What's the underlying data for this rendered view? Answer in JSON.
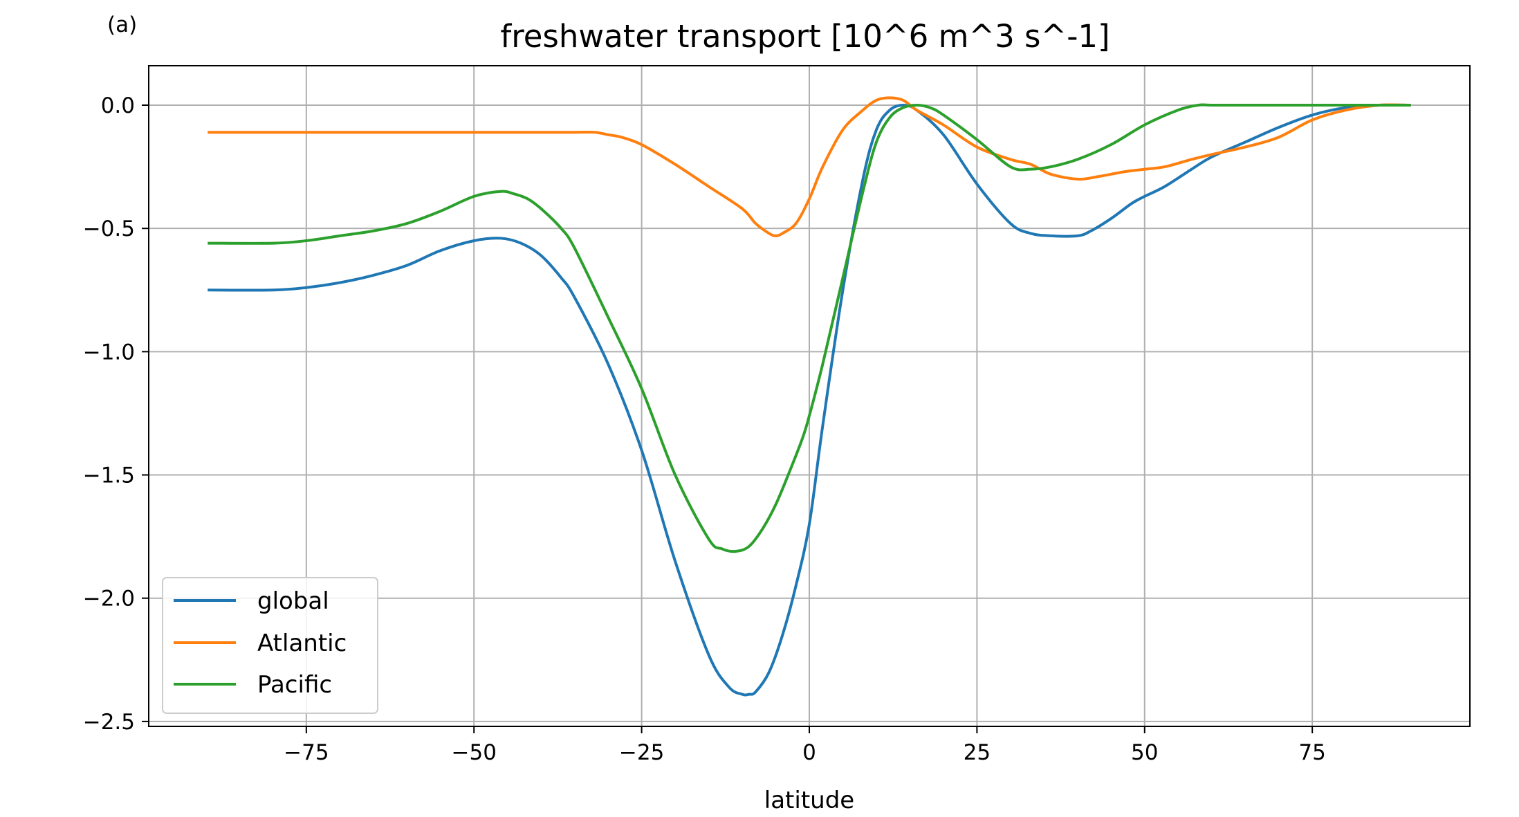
{
  "panel_label": "(a)",
  "chart_data": {
    "type": "line",
    "title": "freshwater transport [10^6 m^3 s^-1]",
    "xlabel": "latitude",
    "ylabel": "",
    "xlim": [
      -98.5,
      98.5
    ],
    "ylim": [
      -2.52,
      0.16
    ],
    "xticks": [
      -75,
      -50,
      -25,
      0,
      25,
      50,
      75
    ],
    "xtick_labels": [
      "−75",
      "−50",
      "−25",
      "0",
      "25",
      "50",
      "75"
    ],
    "yticks": [
      0.0,
      -0.5,
      -1.0,
      -1.5,
      -2.0,
      -2.5
    ],
    "ytick_labels": [
      "0.0",
      "−0.5",
      "−1.0",
      "−1.5",
      "−2.0",
      "−2.5"
    ],
    "grid": true,
    "legend_position": "lower-left",
    "series": [
      {
        "name": "global",
        "color": "#1f77b4",
        "x": [
          -89.5,
          -80,
          -75,
          -70,
          -65,
          -60,
          -55,
          -50,
          -46,
          -43,
          -40,
          -37,
          -35,
          -30,
          -25,
          -20,
          -15,
          -12,
          -10,
          -9,
          -8,
          -6,
          -4,
          -2,
          0,
          2,
          5,
          8,
          10,
          12,
          14,
          16,
          20,
          25,
          30,
          33,
          36,
          40,
          42,
          45,
          48,
          50,
          53,
          57,
          60,
          65,
          70,
          75,
          80,
          85,
          89.5
        ],
        "y": [
          -0.75,
          -0.75,
          -0.74,
          -0.72,
          -0.69,
          -0.65,
          -0.59,
          -0.55,
          -0.54,
          -0.56,
          -0.61,
          -0.7,
          -0.78,
          -1.05,
          -1.4,
          -1.85,
          -2.23,
          -2.36,
          -2.39,
          -2.39,
          -2.38,
          -2.3,
          -2.15,
          -1.95,
          -1.7,
          -1.3,
          -0.75,
          -0.3,
          -0.1,
          -0.02,
          0.0,
          -0.02,
          -0.12,
          -0.32,
          -0.48,
          -0.52,
          -0.53,
          -0.53,
          -0.51,
          -0.46,
          -0.4,
          -0.37,
          -0.33,
          -0.26,
          -0.21,
          -0.15,
          -0.09,
          -0.04,
          -0.01,
          0.0,
          0.0
        ]
      },
      {
        "name": "Atlantic",
        "color": "#ff7f0e",
        "x": [
          -89.5,
          -80,
          -70,
          -60,
          -50,
          -40,
          -35,
          -32,
          -30,
          -28,
          -25,
          -20,
          -15,
          -10,
          -8,
          -6,
          -5,
          -4,
          -2,
          0,
          2,
          5,
          8,
          10,
          12,
          14,
          16,
          20,
          25,
          30,
          33,
          36,
          40,
          43,
          47,
          50,
          53,
          57,
          60,
          65,
          70,
          75,
          80,
          85,
          89.5
        ],
        "y": [
          -0.11,
          -0.11,
          -0.11,
          -0.11,
          -0.11,
          -0.11,
          -0.11,
          -0.11,
          -0.12,
          -0.13,
          -0.16,
          -0.24,
          -0.33,
          -0.42,
          -0.48,
          -0.52,
          -0.53,
          -0.52,
          -0.48,
          -0.38,
          -0.25,
          -0.1,
          -0.02,
          0.02,
          0.03,
          0.02,
          -0.02,
          -0.08,
          -0.17,
          -0.22,
          -0.24,
          -0.28,
          -0.3,
          -0.29,
          -0.27,
          -0.26,
          -0.25,
          -0.22,
          -0.2,
          -0.17,
          -0.13,
          -0.06,
          -0.02,
          0.0,
          0.0
        ]
      },
      {
        "name": "Pacific",
        "color": "#2ca02c",
        "x": [
          -89.5,
          -80,
          -75,
          -70,
          -65,
          -60,
          -55,
          -50,
          -46,
          -44,
          -42,
          -40,
          -37,
          -35,
          -30,
          -25,
          -20,
          -15,
          -13,
          -11,
          -9,
          -7,
          -5,
          -3,
          -1,
          0,
          2,
          5,
          8,
          10,
          12,
          14,
          16,
          18,
          20,
          25,
          30,
          33,
          36,
          40,
          45,
          50,
          55,
          58,
          60,
          65,
          70,
          75,
          80,
          85,
          89.5
        ],
        "y": [
          -0.56,
          -0.56,
          -0.55,
          -0.53,
          -0.51,
          -0.48,
          -0.43,
          -0.37,
          -0.35,
          -0.36,
          -0.38,
          -0.42,
          -0.5,
          -0.58,
          -0.86,
          -1.15,
          -1.5,
          -1.76,
          -1.8,
          -1.81,
          -1.79,
          -1.72,
          -1.62,
          -1.49,
          -1.35,
          -1.26,
          -1.05,
          -0.7,
          -0.35,
          -0.15,
          -0.05,
          -0.01,
          0.0,
          -0.01,
          -0.04,
          -0.14,
          -0.25,
          -0.26,
          -0.25,
          -0.22,
          -0.16,
          -0.08,
          -0.02,
          0.0,
          0.0,
          0.0,
          0.0,
          0.0,
          0.0,
          0.0,
          0.0
        ]
      }
    ]
  }
}
